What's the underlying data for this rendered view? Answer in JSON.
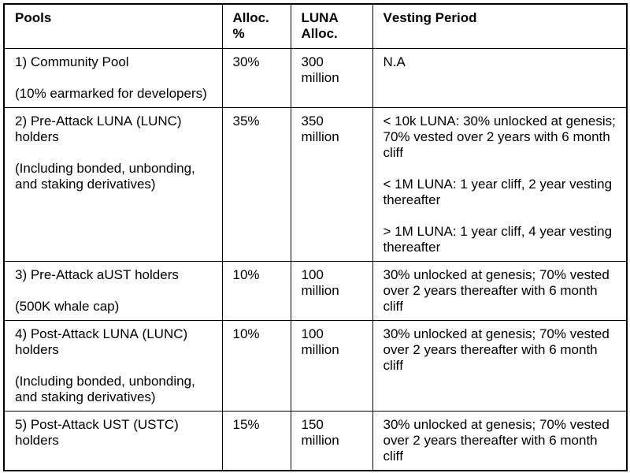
{
  "page": {
    "background_color": "#ffffff",
    "text_color": "#000000",
    "border_color": "#000000"
  },
  "table": {
    "columns": [
      {
        "key": "pool",
        "label": "Pools"
      },
      {
        "key": "alloc",
        "label": "Alloc. %"
      },
      {
        "key": "luna",
        "label": "LUNA Alloc."
      },
      {
        "key": "vesting",
        "label": "Vesting Period"
      }
    ],
    "rows": [
      {
        "pool": [
          "1) Community Pool",
          "(10% earmarked for developers)"
        ],
        "alloc": "30%",
        "luna": "300 million",
        "vesting": [
          "N.A"
        ]
      },
      {
        "pool": [
          "2) Pre-Attack LUNA (LUNC) holders",
          "(Including bonded, unbonding, and staking derivatives)"
        ],
        "alloc": "35%",
        "luna": "350 million",
        "vesting": [
          "< 10k LUNA: 30% unlocked at genesis; 70% vested over 2 years with 6 month cliff",
          "< 1M LUNA: 1 year cliff, 2 year vesting thereafter",
          "> 1M LUNA: 1 year cliff, 4 year vesting thereafter"
        ]
      },
      {
        "pool": [
          "3) Pre-Attack aUST holders",
          "(500K whale cap)"
        ],
        "alloc": "10%",
        "luna": "100 million",
        "vesting": [
          "30% unlocked at genesis; 70% vested over 2 years thereafter with 6 month cliff"
        ]
      },
      {
        "pool": [
          "4) Post-Attack LUNA (LUNC) holders",
          "(Including bonded, unbonding, and staking derivatives)"
        ],
        "alloc": "10%",
        "luna": "100 million",
        "vesting": [
          "30% unlocked at genesis; 70% vested over 2 years thereafter with 6 month cliff"
        ]
      },
      {
        "pool": [
          "5) Post-Attack UST (USTC) holders"
        ],
        "alloc": "15%",
        "luna": "150 million",
        "vesting": [
          "30% unlocked at genesis; 70% vested over 2 years thereafter with 6 month cliff"
        ]
      }
    ]
  }
}
